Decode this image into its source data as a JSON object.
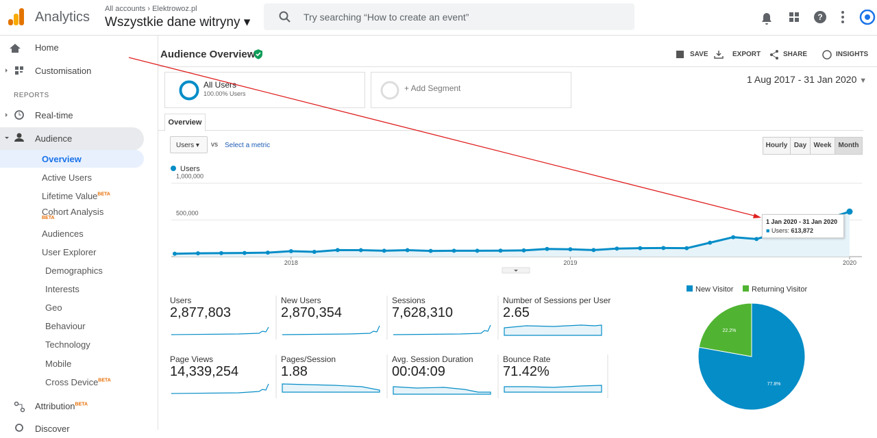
{
  "header": {
    "app": "Analytics",
    "breadcrumb_root": "All accounts",
    "breadcrumb_account": "Elektrowoz.pl",
    "property": "Wszystkie dane witryny",
    "search": "Try searching “How to create an event”"
  },
  "sidebar": {
    "top": [
      "Home",
      "Customisation"
    ],
    "section": "REPORTS",
    "reports": [
      "Real-time",
      "Audience"
    ],
    "audience_items": [
      {
        "label": "Overview"
      },
      {
        "label": "Active Users"
      },
      {
        "label": "Lifetime Value",
        "badge": "BETA"
      },
      {
        "label": "Cohort Analysis",
        "badge": "BETA"
      },
      {
        "label": "Audiences"
      },
      {
        "label": "User Explorer"
      },
      {
        "label": "Demographics"
      },
      {
        "label": "Interests"
      },
      {
        "label": "Geo"
      },
      {
        "label": "Behaviour"
      },
      {
        "label": "Technology"
      },
      {
        "label": "Mobile"
      },
      {
        "label": "Cross Device",
        "badge": "BETA"
      }
    ],
    "bottom": [
      {
        "label": "Attribution",
        "badge": "BETA"
      },
      {
        "label": "Discover"
      }
    ]
  },
  "main": {
    "title": "Audience Overview",
    "actions": [
      "SAVE",
      "EXPORT",
      "SHARE",
      "INSIGHTS"
    ],
    "segment": {
      "name": "All Users",
      "detail": "100.00% Users"
    },
    "add_segment": "+ Add Segment",
    "date_range": "1 Aug 2017 - 31 Jan 2020",
    "tab": "Overview",
    "metric_select": "Users",
    "vs": "vs",
    "select_metric": "Select a metric",
    "granularity": [
      "Hourly",
      "Day",
      "Week",
      "Month"
    ],
    "tooltip": {
      "title": "1 Jan 2020 - 31 Jan 2020",
      "label": "Users:",
      "value": "613,872"
    },
    "metrics": [
      {
        "name": "Users",
        "value": "2,877,803"
      },
      {
        "name": "New Users",
        "value": "2,870,354"
      },
      {
        "name": "Sessions",
        "value": "7,628,310"
      },
      {
        "name": "Number of Sessions per User",
        "value": "2.65"
      },
      {
        "name": "Page Views",
        "value": "14,339,254"
      },
      {
        "name": "Pages/Session",
        "value": "1.88"
      },
      {
        "name": "Avg. Session Duration",
        "value": "00:04:09"
      },
      {
        "name": "Bounce Rate",
        "value": "71.42%"
      }
    ]
  },
  "chart_data": [
    {
      "type": "line",
      "categories": [
        null,
        null,
        null,
        null,
        null,
        "2018",
        null,
        null,
        null,
        null,
        null,
        null,
        null,
        null,
        null,
        null,
        null,
        "2019",
        null,
        null,
        null,
        null,
        null,
        null,
        null,
        null,
        null,
        null,
        null,
        "2020"
      ],
      "series": [
        {
          "name": "Users",
          "color": "#058dc7",
          "values": [
            40000,
            45000,
            48000,
            50000,
            55000,
            75000,
            65000,
            90000,
            88000,
            80000,
            88000,
            78000,
            80000,
            80000,
            82000,
            85000,
            105000,
            100000,
            90000,
            110000,
            115000,
            118000,
            115000,
            190000,
            265000,
            240000,
            330000,
            420000,
            510000,
            613872
          ]
        }
      ],
      "ylim": [
        0,
        1100000
      ],
      "yticks": [
        {
          "value": 500000,
          "label": "500,000"
        },
        {
          "value": 1000000,
          "label": "1,000,000"
        }
      ],
      "grid": true
    },
    {
      "type": "pie",
      "categories": [
        "New Visitor",
        "Returning Visitor"
      ],
      "values": [
        77.8,
        22.2
      ],
      "value_labels": [
        "77.8%",
        "22.2%"
      ],
      "colors": [
        "#058dc7",
        "#50b432"
      ]
    }
  ]
}
